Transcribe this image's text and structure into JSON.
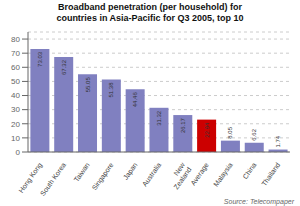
{
  "chart_data": {
    "type": "bar",
    "title": "Broadband penetration (per household) for\ncountries in Asia-Pacific for Q3 2005, top 10",
    "categories": [
      "Hong Kong",
      "South Korea",
      "Taiwan",
      "Singapore",
      "Japan",
      "Australia",
      "New\nZealand",
      "Average",
      "Malaysia",
      "China",
      "Thailand"
    ],
    "values": [
      73.03,
      67.32,
      55.05,
      51.38,
      44.46,
      31.32,
      26.17,
      22.94,
      8.05,
      6.62,
      1.74
    ],
    "colors": [
      "#8080c0",
      "#8080c0",
      "#8080c0",
      "#8080c0",
      "#8080c0",
      "#8080c0",
      "#8080c0",
      "#cc0000",
      "#8080c0",
      "#8080c0",
      "#8080c0"
    ],
    "ylim": [
      0,
      85
    ],
    "yticks": [
      0,
      10,
      20,
      30,
      40,
      50,
      60,
      70,
      80
    ],
    "grid": true,
    "data_labels": true,
    "annotations": [
      "Source: Telecompaper"
    ]
  }
}
